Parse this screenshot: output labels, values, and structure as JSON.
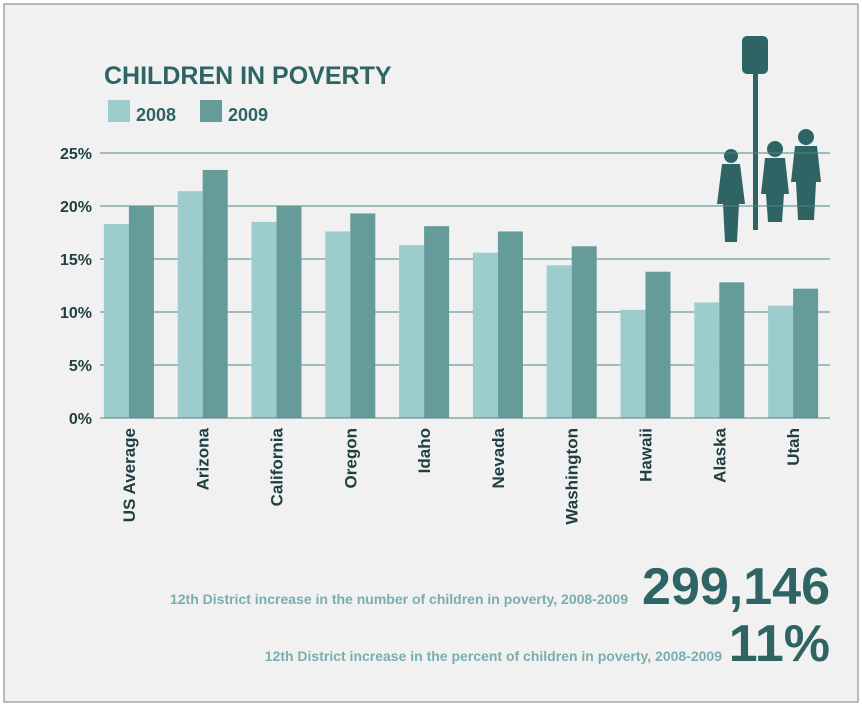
{
  "chart_data": {
    "type": "bar",
    "title": "CHILDREN IN POVERTY",
    "categories": [
      "US Average",
      "Arizona",
      "California",
      "Oregon",
      "Idaho",
      "Nevada",
      "Washington",
      "Hawaii",
      "Alaska",
      "Utah"
    ],
    "series": [
      {
        "name": "2008",
        "color": "#9ccccc",
        "values": [
          18.3,
          21.4,
          18.5,
          17.6,
          16.3,
          15.6,
          14.4,
          10.2,
          10.9,
          10.6
        ]
      },
      {
        "name": "2009",
        "color": "#659c9a",
        "values": [
          20.0,
          23.4,
          20.0,
          19.3,
          18.1,
          17.6,
          16.2,
          13.8,
          12.8,
          12.2
        ]
      }
    ],
    "ylim": [
      0,
      25
    ],
    "yticks": [
      {
        "value": 0,
        "label": "0%"
      },
      {
        "value": 5,
        "label": "5%"
      },
      {
        "value": 10,
        "label": "10%"
      },
      {
        "value": 15,
        "label": "15%"
      },
      {
        "value": 20,
        "label": "20%"
      },
      {
        "value": 25,
        "label": "25%"
      }
    ],
    "grid": true,
    "annotations": [
      {
        "text": "12th District increase in the number of children in poverty, 2008-2009",
        "figure": "299,146"
      },
      {
        "text": "12th District increase in the percent of children in poverty, 2008-2009",
        "figure": "11%"
      }
    ]
  }
}
